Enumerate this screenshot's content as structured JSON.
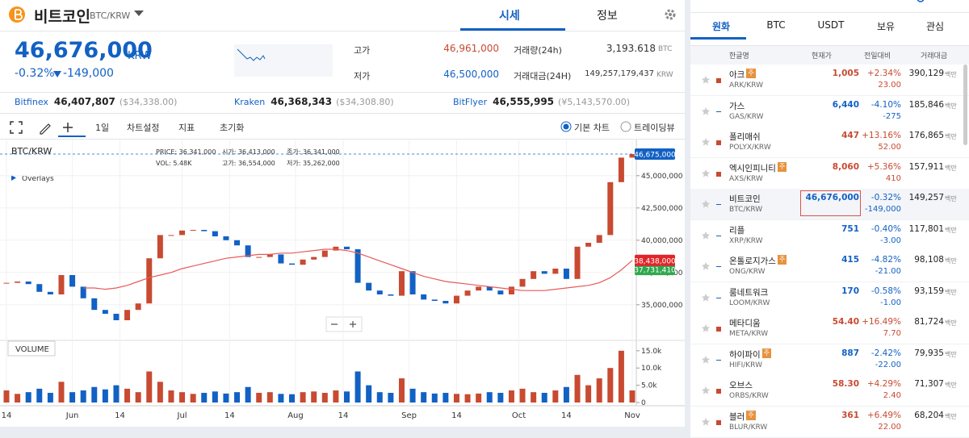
{
  "header": {
    "name": "비트코인",
    "pair": "BTC/KRW",
    "tabs": [
      "시세",
      "정보"
    ]
  },
  "summary": {
    "price": "46,676,000",
    "currency": "KRW",
    "change_rate": "-0.32%",
    "change": "-149,000",
    "high_label": "고가",
    "high": "46,961,000",
    "low_label": "저가",
    "low": "46,500,000",
    "volume_label": "거래량(24h)",
    "volume": "3,193.618",
    "volume_unit": "BTC",
    "amount_label": "거래대금(24H)",
    "amount": "149,257,179,437",
    "amount_unit": "KRW"
  },
  "exchanges": [
    {
      "name": "Bitfinex",
      "price": "46,407,807",
      "foreign": "($34,338.00)"
    },
    {
      "name": "Kraken",
      "price": "46,368,343",
      "foreign": "($34,308.80)"
    },
    {
      "name": "BitFlyer",
      "price": "46,555,995",
      "foreign": "(¥5,143,570.00)"
    }
  ],
  "toolbar": {
    "period": "1일",
    "settings": "차트설정",
    "indicators": "지표",
    "reset": "초기화",
    "basic": "기본 차트",
    "tradingview": "트레이딩뷰"
  },
  "chart_data": {
    "type": "candlestick",
    "pair": "BTC/KRW",
    "overlays": "Overlays",
    "volume_title": "VOLUME",
    "info": [
      "PRICE: 36,341,000",
      "시가: 36,413,000",
      "종가: 36,341,000",
      "VOL: 5.48K",
      "고가: 36,554,000",
      "저가: 35,262,000"
    ],
    "close": [
      36700000,
      36800000,
      36600000,
      36000000,
      35800000,
      37300000,
      36400000,
      35500000,
      34600000,
      34300000,
      33800000,
      34600000,
      35100000,
      38600000,
      40400000,
      40400000,
      40750000,
      40800000,
      40700000,
      40300000,
      40000000,
      39600000,
      38700000,
      38700000,
      38900000,
      38200000,
      38100000,
      38500000,
      38700000,
      39200000,
      39500000,
      39300000,
      36700000,
      36100000,
      35800000,
      35700000,
      37600000,
      35800000,
      35400000,
      35300000,
      35100000,
      35700000,
      36100000,
      36400000,
      36100000,
      35800000,
      36400000,
      37000000,
      37600000,
      37400000,
      37800000,
      37000000,
      39500000,
      39800000,
      40400000,
      44500000,
      46400000,
      46675000
    ],
    "ma": [
      null,
      null,
      null,
      null,
      null,
      null,
      null,
      36300000,
      36300000,
      36200000,
      36300000,
      36500000,
      36800000,
      37100000,
      37300000,
      37500000,
      37800000,
      38000000,
      38200000,
      38400000,
      38600000,
      38700000,
      38800000,
      38900000,
      38900000,
      39000000,
      39000000,
      39100000,
      39200000,
      39300000,
      39300000,
      39200000,
      39000000,
      38700000,
      38400000,
      38100000,
      37800000,
      37500000,
      37200000,
      37000000,
      36800000,
      36700000,
      36600000,
      36500000,
      36400000,
      36300000,
      36200000,
      36100000,
      36100000,
      36100000,
      36200000,
      36300000,
      36400000,
      36500000,
      36700000,
      37100000,
      37700000,
      38438000
    ],
    "volume": [
      3500,
      2500,
      3000,
      4000,
      2800,
      6000,
      3000,
      3500,
      4500,
      3800,
      5000,
      4000,
      3000,
      9000,
      6000,
      3500,
      3000,
      2500,
      2800,
      3200,
      2600,
      3000,
      4500,
      2800,
      3000,
      2500,
      2400,
      3000,
      3200,
      2800,
      3500,
      3200,
      9000,
      5000,
      3000,
      2800,
      7000,
      4000,
      3000,
      2600,
      2800,
      2500,
      2400,
      2600,
      3000,
      2800,
      3500,
      4000,
      3000,
      2800,
      3500,
      4500,
      8000,
      5000,
      7000,
      10000,
      15000,
      3500
    ],
    "up_color": "#c84a31",
    "down_color": "#1261c4",
    "ma_color": "#e85a5a",
    "xlim": [
      0,
      57
    ],
    "xticks": [
      {
        "value": 0,
        "label": "14"
      },
      {
        "value": 6,
        "label": "Jun"
      },
      {
        "value": 10.33,
        "label": "14"
      },
      {
        "value": 16,
        "label": "Jul"
      },
      {
        "value": 20.33,
        "label": "14"
      },
      {
        "value": 26.33,
        "label": "Aug"
      },
      {
        "value": 30.67,
        "label": "14"
      },
      {
        "value": 36.67,
        "label": "Sep"
      },
      {
        "value": 41,
        "label": "14"
      },
      {
        "value": 46.67,
        "label": "Oct"
      },
      {
        "value": 51,
        "label": "14"
      },
      {
        "value": 57,
        "label": "Nov"
      }
    ],
    "ylim": [
      32300000,
      47800000
    ],
    "yticks": [
      {
        "value": 35000000,
        "label": "35,000,000"
      },
      {
        "value": 37500000,
        "label": "37,500,000"
      },
      {
        "value": 40000000,
        "label": "40,000,000"
      },
      {
        "value": 42500000,
        "label": "42,500,000"
      },
      {
        "value": 45000000,
        "label": "45,000,000"
      }
    ],
    "vlim": [
      0,
      17300
    ],
    "vticks": [
      0,
      {
        "value": 5000,
        "label": "5.0k"
      },
      {
        "value": 10000,
        "label": "10.0k"
      },
      {
        "value": 15000,
        "label": "15.0k"
      }
    ],
    "current_price": {
      "value": 46675000,
      "label": "46,675,000"
    },
    "ma_price": {
      "value": 38438000,
      "label": "38,438,000"
    },
    "other_price": {
      "value": 37731410,
      "label": "37,731,410"
    },
    "grid": true
  },
  "market": {
    "tabs": [
      "원화",
      "BTC",
      "USDT",
      "보유",
      "관심"
    ],
    "columns": [
      "한글명",
      "현재가",
      "전일대비",
      "거래대금"
    ],
    "rows": [
      {
        "name": "아크",
        "badge": "주",
        "code": "ARK/KRW",
        "price": "1,005",
        "rate": "+2.34%",
        "change": "23.00",
        "amount": "390,129",
        "unit": "백만",
        "color": "#c84a31"
      },
      {
        "name": "가스",
        "code": "GAS/KRW",
        "price": "6,440",
        "rate": "-4.10%",
        "change": "-275",
        "amount": "185,846",
        "unit": "백만",
        "color": "#1261c4"
      },
      {
        "name": "폴리매쉬",
        "code": "POLYX/KRW",
        "price": "447",
        "rate": "+13.16%",
        "change": "52.00",
        "amount": "176,865",
        "unit": "백만",
        "color": "#c84a31"
      },
      {
        "name": "엑시인피니티",
        "badge": "주",
        "code": "AXS/KRW",
        "price": "8,060",
        "rate": "+5.36%",
        "change": "410",
        "amount": "157,911",
        "unit": "백만",
        "color": "#c84a31"
      },
      {
        "name": "비트코인",
        "code": "BTC/KRW",
        "price": "46,676,000",
        "rate": "-0.32%",
        "change": "-149,000",
        "amount": "149,257",
        "unit": "백만",
        "color": "#1261c4",
        "selected": true
      },
      {
        "name": "리플",
        "code": "XRP/KRW",
        "price": "751",
        "rate": "-0.40%",
        "change": "-3.00",
        "amount": "117,801",
        "unit": "백만",
        "color": "#1261c4"
      },
      {
        "name": "온톨로지가스",
        "badge": "주",
        "code": "ONG/KRW",
        "price": "415",
        "rate": "-4.82%",
        "change": "-21.00",
        "amount": "98,108",
        "unit": "백만",
        "color": "#1261c4"
      },
      {
        "name": "룸네트워크",
        "code": "LOOM/KRW",
        "price": "170",
        "rate": "-0.58%",
        "change": "-1.00",
        "amount": "93,159",
        "unit": "백만",
        "color": "#1261c4"
      },
      {
        "name": "메타디움",
        "code": "META/KRW",
        "price": "54.40",
        "rate": "+16.49%",
        "change": "7.70",
        "amount": "81,724",
        "unit": "백만",
        "color": "#c84a31"
      },
      {
        "name": "하이파이",
        "badge": "주",
        "code": "HIFI/KRW",
        "price": "887",
        "rate": "-2.42%",
        "change": "-22.00",
        "amount": "79,935",
        "unit": "백만",
        "color": "#1261c4"
      },
      {
        "name": "오브스",
        "code": "ORBS/KRW",
        "price": "58.30",
        "rate": "+4.29%",
        "change": "2.40",
        "amount": "71,307",
        "unit": "백만",
        "color": "#c84a31"
      },
      {
        "name": "블러",
        "badge": "주",
        "code": "BLUR/KRW",
        "price": "361",
        "rate": "+6.49%",
        "change": "22.00",
        "amount": "68,204",
        "unit": "백만",
        "color": "#c84a31"
      }
    ]
  }
}
